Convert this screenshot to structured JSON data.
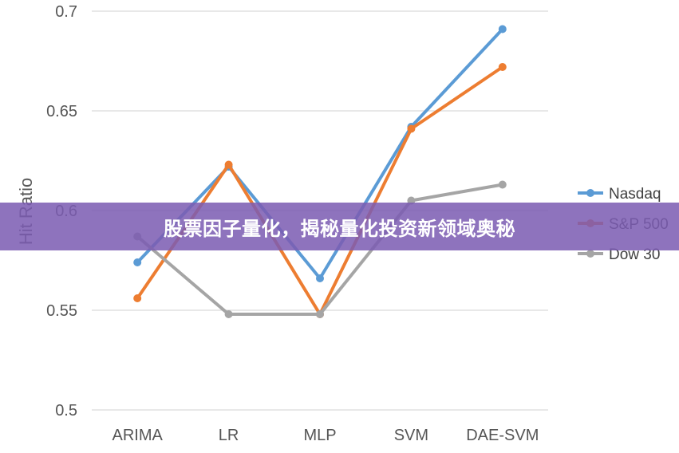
{
  "banner": {
    "text": "股票因子量化，揭秘量化投资新领域奥秘"
  },
  "chart_data": {
    "type": "line",
    "categories": [
      "ARIMA",
      "LR",
      "MLP",
      "SVM",
      "DAE-SVM"
    ],
    "ylabel": "Hit Ratio",
    "xlabel": "",
    "ylim": [
      0.5,
      0.7
    ],
    "yticks": [
      0.5,
      0.55,
      0.6,
      0.65,
      0.7
    ],
    "ytick_labels": [
      "0.5",
      "0.55",
      "0.6",
      "0.65",
      "0.7"
    ],
    "grid": true,
    "legend": "right",
    "series": [
      {
        "name": "Nasdaq",
        "color": "#5B9BD5",
        "values": [
          0.574,
          0.622,
          0.566,
          0.642,
          0.691
        ]
      },
      {
        "name": "S&P 500",
        "color": "#ED7D31",
        "values": [
          0.556,
          0.623,
          0.548,
          0.641,
          0.672
        ]
      },
      {
        "name": "Dow 30",
        "color": "#A5A5A5",
        "values": [
          0.587,
          0.548,
          0.548,
          0.605,
          0.613
        ]
      }
    ]
  }
}
